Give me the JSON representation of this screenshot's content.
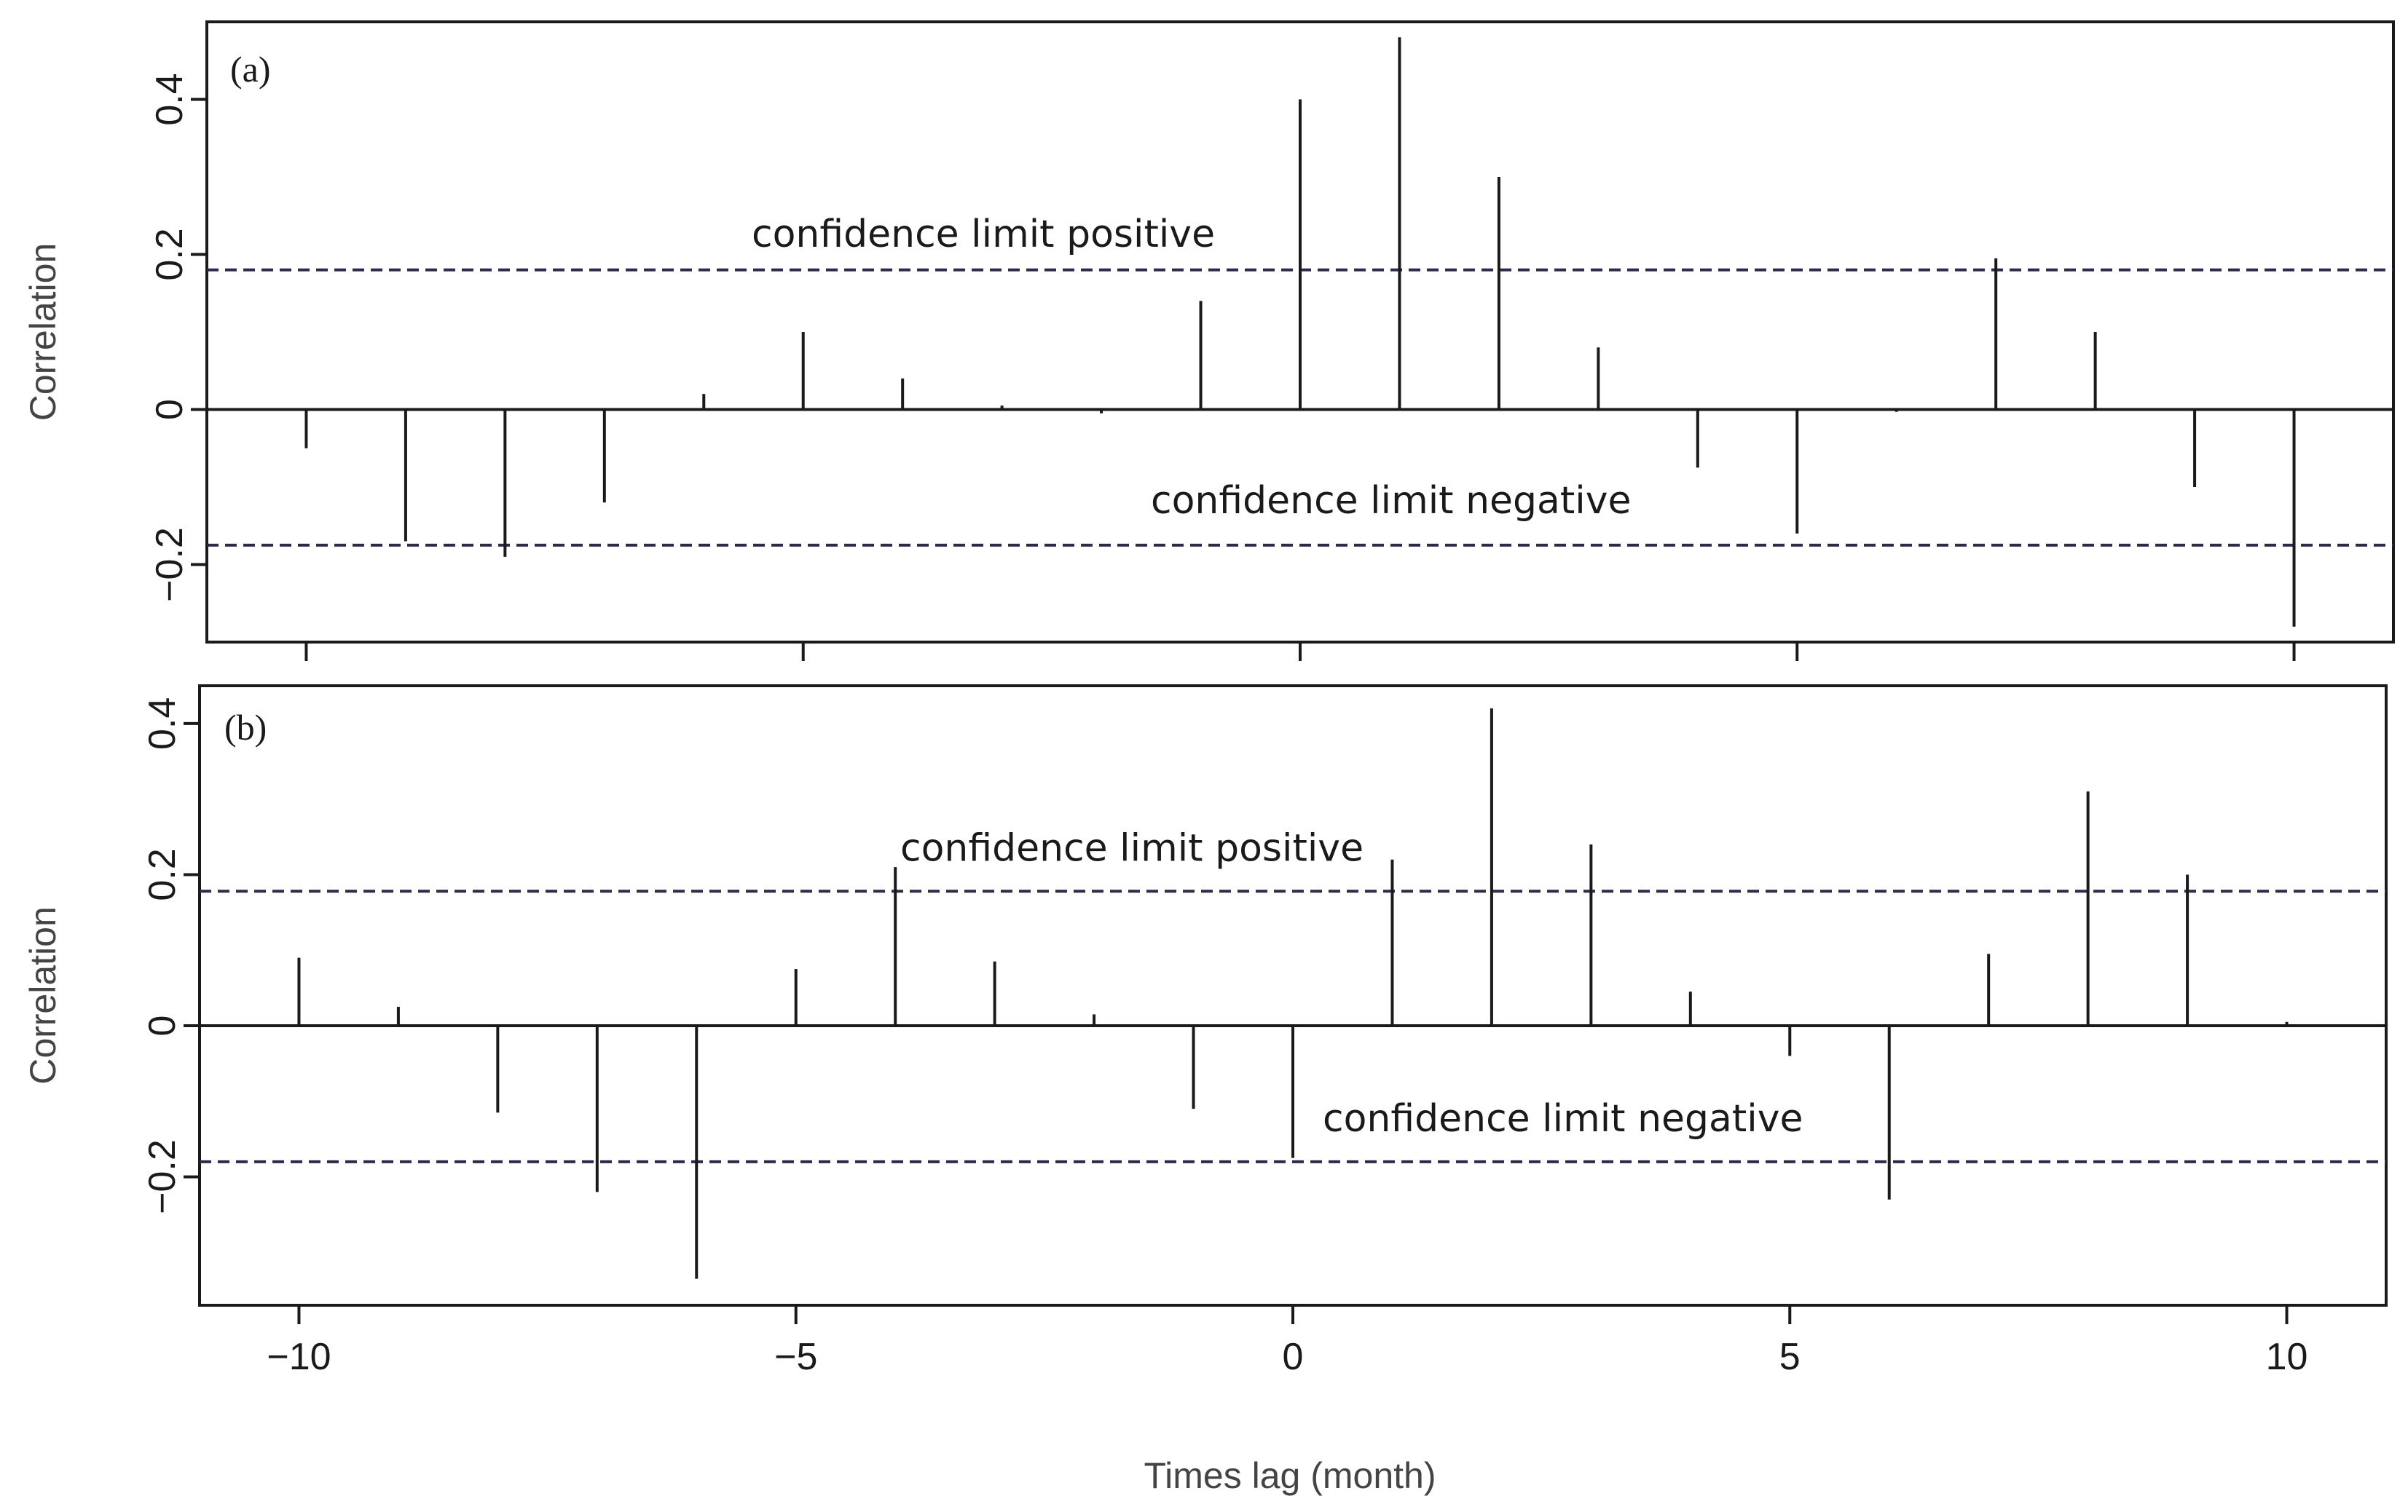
{
  "chart_data": [
    {
      "type": "bar",
      "panel_label": "(a)",
      "ylabel": "Correlation",
      "xlabel": "",
      "ylim": [
        -0.3,
        0.5
      ],
      "xlim": [
        -11,
        11
      ],
      "yticks": [
        -0.2,
        0,
        0.2,
        0.4
      ],
      "ytick_labels": [
        "−0.2",
        "0",
        "0.2",
        "0.4"
      ],
      "xticks": [
        -10,
        -5,
        0,
        5,
        10
      ],
      "confidence_limits": {
        "upper": 0.18,
        "lower": -0.175
      },
      "annotations": {
        "upper": "confidence limit positive",
        "lower": "confidence limit negative"
      },
      "x": [
        -10,
        -9,
        -8,
        -7,
        -6,
        -5,
        -4,
        -3,
        -2,
        -1,
        0,
        1,
        2,
        3,
        4,
        5,
        6,
        7,
        8,
        9,
        10
      ],
      "values": [
        -0.05,
        -0.17,
        -0.19,
        -0.12,
        0.02,
        0.1,
        0.04,
        0.005,
        -0.005,
        0.14,
        0.4,
        0.48,
        0.3,
        0.08,
        -0.075,
        -0.16,
        -0.003,
        0.195,
        0.1,
        -0.1,
        -0.28
      ]
    },
    {
      "type": "bar",
      "panel_label": "(b)",
      "ylabel": "Correlation",
      "xlabel": "Times lag (month)",
      "ylim": [
        -0.37,
        0.45
      ],
      "xlim": [
        -11,
        11
      ],
      "yticks": [
        -0.2,
        0,
        0.2,
        0.4
      ],
      "ytick_labels": [
        "−0.2",
        "0",
        "0.2",
        "0.4"
      ],
      "xticks": [
        -10,
        -5,
        0,
        5,
        10
      ],
      "xtick_labels": [
        "−10",
        "−5",
        "0",
        "5",
        "10"
      ],
      "confidence_limits": {
        "upper": 0.178,
        "lower": -0.18
      },
      "annotations": {
        "upper": "confidence limit positive",
        "lower": "confidence limit negative"
      },
      "x": [
        -10,
        -9,
        -8,
        -7,
        -6,
        -5,
        -4,
        -3,
        -2,
        -1,
        0,
        1,
        2,
        3,
        4,
        5,
        6,
        7,
        8,
        9,
        10
      ],
      "values": [
        0.09,
        0.025,
        -0.115,
        -0.22,
        -0.335,
        0.075,
        0.21,
        0.085,
        0.015,
        -0.11,
        -0.175,
        0.22,
        0.42,
        0.24,
        0.045,
        -0.04,
        -0.23,
        0.095,
        0.31,
        0.2,
        0.005
      ]
    }
  ]
}
